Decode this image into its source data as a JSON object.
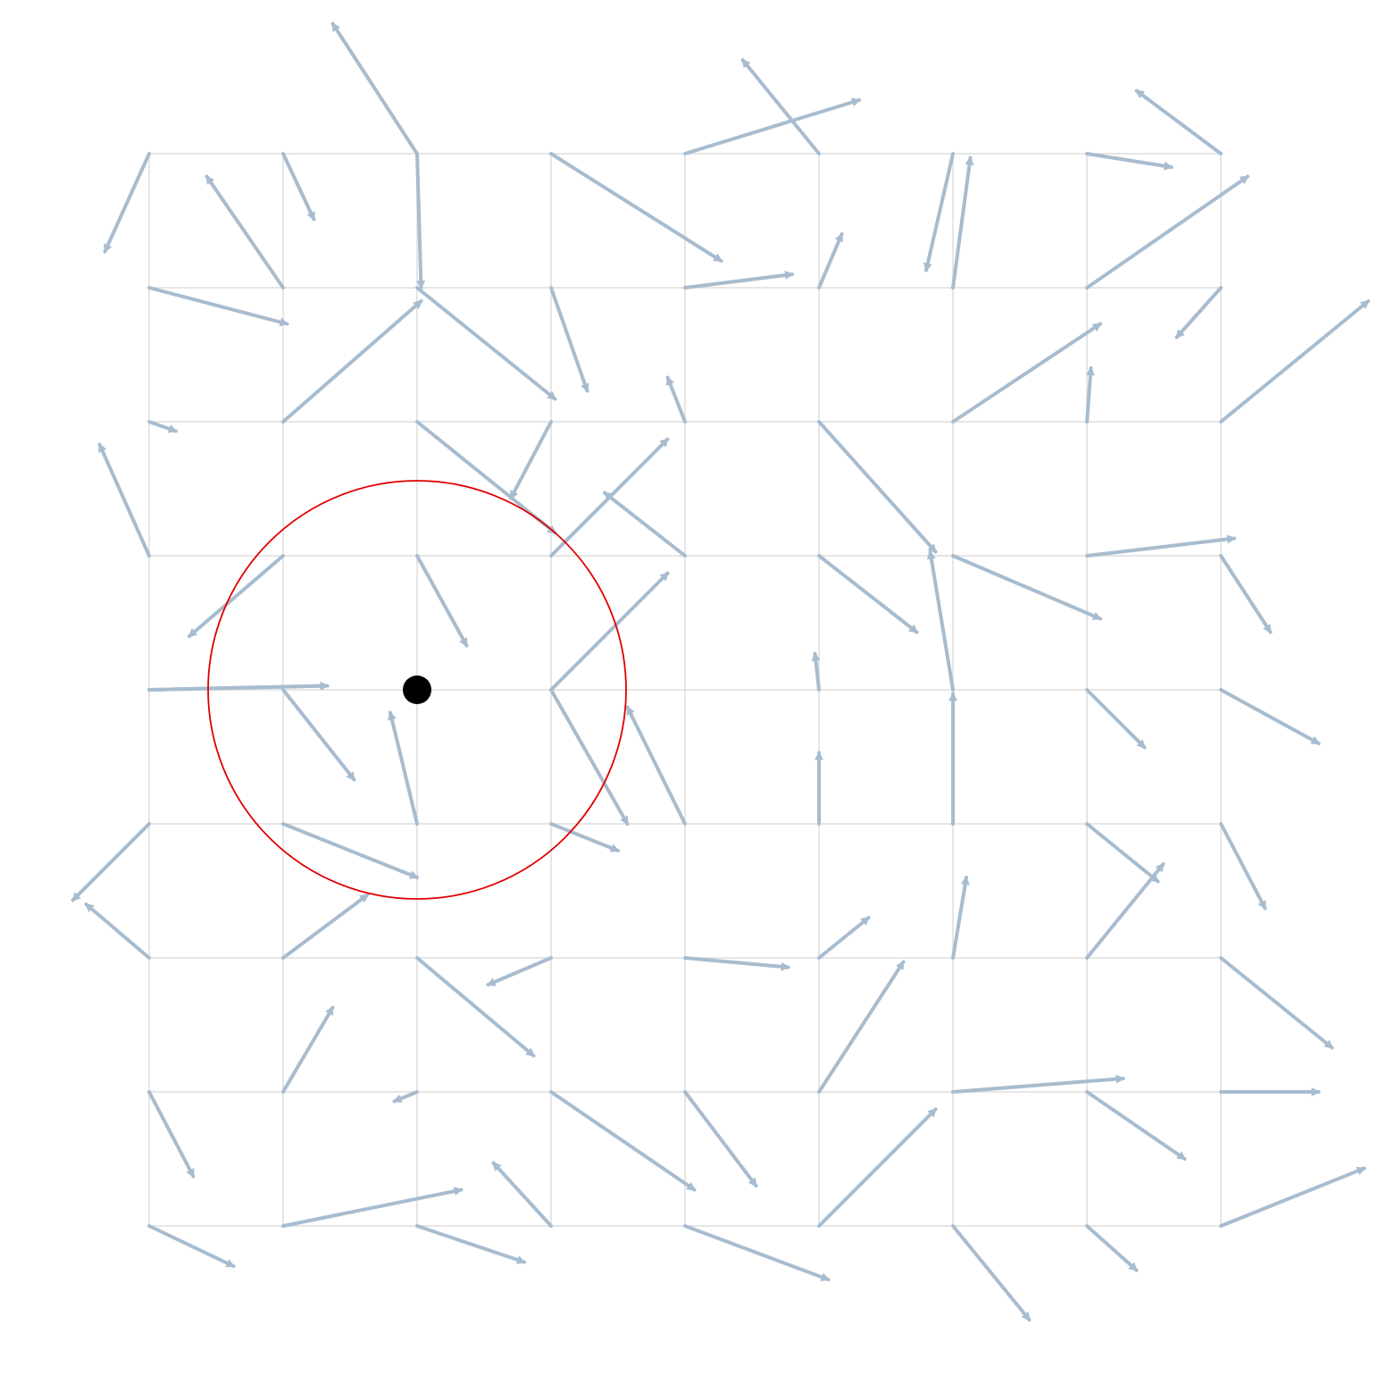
{
  "colors": {
    "background": "#ffffff",
    "grid": "#dddddd",
    "arrow": "#a8bccf",
    "circle": "#e00000",
    "point": "#000000"
  },
  "grid": {
    "columns": [
      0,
      1,
      2,
      3,
      4,
      5,
      6,
      7,
      8
    ],
    "rows": [
      0,
      1,
      2,
      3,
      4,
      5,
      6,
      7,
      8
    ]
  },
  "vectors": [
    [
      [
        -0.33,
        0.73
      ],
      [
        0.23,
        0.49
      ],
      [
        0.03,
        1.0
      ],
      [
        1.27,
        0.8
      ],
      [
        1.3,
        -0.4
      ],
      [
        -0.57,
        -0.7
      ],
      [
        -0.2,
        0.87
      ],
      [
        0.63,
        0.1
      ],
      [
        -0.63,
        -0.47
      ]
    ],
    [
      [
        1.03,
        0.27
      ],
      [
        -0.57,
        -0.83
      ],
      [
        0.0,
        0.0
      ],
      [
        0.27,
        0.77
      ],
      [
        0.8,
        -0.1
      ],
      [
        0.17,
        -0.4
      ],
      [
        0.13,
        -0.97
      ],
      [
        1.2,
        -0.83
      ],
      [
        -0.33,
        0.37
      ]
    ],
    [
      [
        0.2,
        0.07
      ],
      [
        1.03,
        -0.9
      ],
      [
        1.03,
        0.83
      ],
      [
        -0.3,
        0.57
      ],
      [
        -0.13,
        -0.33
      ],
      [
        0.87,
        0.97
      ],
      [
        1.1,
        -0.73
      ],
      [
        0.03,
        -0.4
      ],
      [
        1.1,
        -0.9
      ]
    ],
    [
      [
        -0.37,
        -0.83
      ],
      [
        -0.7,
        0.6
      ],
      [
        0.37,
        0.67
      ],
      [
        0.87,
        -0.87
      ],
      [
        -0.6,
        -0.47
      ],
      [
        0.73,
        0.57
      ],
      [
        1.1,
        0.47
      ],
      [
        1.1,
        -0.13
      ],
      [
        0.37,
        0.57
      ]
    ],
    [
      [
        1.33,
        -0.03
      ],
      [
        0.53,
        0.67
      ],
      [
        0.0,
        0.0
      ],
      [
        0.57,
        1.0
      ],
      [
        0.0,
        0.0
      ],
      [
        -0.03,
        -0.27
      ],
      [
        -0.17,
        -1.03
      ],
      [
        0.43,
        0.43
      ],
      [
        0.73,
        0.4
      ]
    ],
    [
      [
        -0.57,
        0.57
      ],
      [
        1.0,
        0.4
      ],
      [
        -0.2,
        -0.83
      ],
      [
        0.5,
        0.2
      ],
      [
        -0.43,
        -0.87
      ],
      [
        0.0,
        -0.53
      ],
      [
        0.0,
        -0.97
      ],
      [
        0.53,
        0.43
      ],
      [
        0.33,
        0.63
      ]
    ],
    [
      [
        -0.47,
        -0.4
      ],
      [
        0.63,
        -0.47
      ],
      [
        0.87,
        0.73
      ],
      [
        -0.47,
        0.2
      ],
      [
        0.77,
        0.07
      ],
      [
        0.37,
        -0.3
      ],
      [
        0.1,
        -0.6
      ],
      [
        0.57,
        -0.7
      ],
      [
        0.83,
        0.67
      ]
    ],
    [
      [
        0.33,
        0.63
      ],
      [
        0.37,
        -0.63
      ],
      [
        -0.17,
        0.07
      ],
      [
        1.07,
        0.73
      ],
      [
        0.53,
        0.7
      ],
      [
        0.63,
        -0.97
      ],
      [
        1.27,
        -0.1
      ],
      [
        0.73,
        0.5
      ],
      [
        0.73,
        0.0
      ]
    ],
    [
      [
        0.63,
        0.3
      ],
      [
        1.33,
        -0.27
      ],
      [
        0.8,
        0.27
      ],
      [
        -0.43,
        -0.47
      ],
      [
        1.07,
        0.4
      ],
      [
        0.87,
        -0.87
      ],
      [
        0.57,
        0.7
      ],
      [
        0.37,
        0.33
      ],
      [
        1.07,
        -0.43
      ]
    ]
  ],
  "stray_arrows": [
    {
      "from": [
        2.0,
        0.0
      ],
      "vec": [
        -0.63,
        -0.97
      ]
    },
    {
      "from": [
        2.0,
        1.0
      ],
      "vec": [
        1.03,
        0.83
      ]
    },
    {
      "from": [
        -0.0,
        4.0
      ],
      "vec": [
        1.33,
        -0.03
      ]
    },
    {
      "from": [
        3.0,
        4.0
      ],
      "vec": [
        0.87,
        -0.87
      ]
    }
  ],
  "point": {
    "x": 2,
    "y": 4
  },
  "circle": {
    "cx": 2,
    "cy": 4,
    "r": 1.56
  }
}
